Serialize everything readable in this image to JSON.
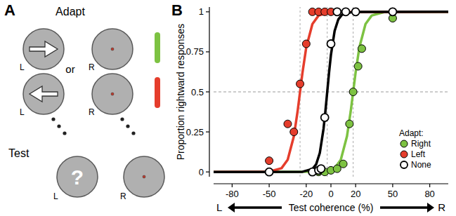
{
  "panel_labels": [
    "A",
    "B"
  ],
  "diagram": {
    "adapt_label": "Adapt",
    "or_label": "or",
    "test_label": "Test",
    "test_symbol": "?",
    "eye_labels": [
      "L",
      "R"
    ],
    "adapt_conditions": [
      {
        "direction": "right",
        "color": "#7dc242"
      },
      {
        "direction": "left",
        "color": "#e53d2c"
      }
    ]
  },
  "chart_data": {
    "type": "scatter",
    "xlabel": "Test coherence (%)",
    "x_end_labels": [
      "L",
      "R"
    ],
    "ylabel": "Proportion rightward responses",
    "xlim": [
      -95,
      95
    ],
    "ylim": [
      -0.03,
      1.03
    ],
    "xticks": [
      -80,
      -50,
      -20,
      0,
      20,
      50,
      80
    ],
    "yticks": [
      0,
      0.25,
      0.5,
      0.75,
      1
    ],
    "criterion": 0.5,
    "legend": "right",
    "legend_title": "Adapt:",
    "series": [
      {
        "name": "Right",
        "color": "#7dc242",
        "marker": "circle",
        "pse": 18,
        "x": [
          -50,
          -10,
          -5,
          0,
          5,
          10,
          15,
          18,
          22,
          25,
          50
        ],
        "values": [
          0,
          0,
          0,
          0.01,
          0.02,
          0.05,
          0.3,
          0.5,
          0.66,
          0.77,
          0.96
        ],
        "fit": {
          "x": [
            -95,
            -7,
            3,
            8,
            13,
            16,
            18,
            20,
            23,
            28,
            33,
            43,
            95
          ],
          "values": [
            0,
            0.002,
            0.023,
            0.076,
            0.223,
            0.378,
            0.5,
            0.622,
            0.777,
            0.924,
            0.977,
            0.998,
            1
          ]
        }
      },
      {
        "name": "Left",
        "color": "#e53d2c",
        "marker": "circle",
        "pse": -25,
        "x": [
          -50,
          -35,
          -30,
          -25,
          -20,
          -15,
          -10,
          -5,
          0,
          5,
          50
        ],
        "values": [
          0.07,
          0.3,
          0.25,
          0.55,
          0.8,
          1,
          1,
          1,
          1,
          1,
          1
        ],
        "fit": {
          "x": [
            -95,
            -50,
            -40,
            -35,
            -30,
            -27,
            -25,
            -23,
            -20,
            -15,
            -10,
            0,
            95
          ],
          "values": [
            0,
            0.002,
            0.023,
            0.076,
            0.223,
            0.378,
            0.5,
            0.622,
            0.777,
            0.924,
            0.977,
            0.998,
            1
          ]
        }
      },
      {
        "name": "None",
        "color": "#000000",
        "marker": "circle",
        "pse": -3,
        "x": [
          -50,
          -15,
          -10,
          -8,
          -5,
          0,
          5,
          12,
          20,
          50
        ],
        "values": [
          0,
          0,
          0.01,
          0.02,
          0.34,
          0.8,
          1,
          1,
          1,
          1
        ],
        "fit": {
          "x": [
            -95,
            -23,
            -15,
            -12,
            -9,
            -6,
            -4.5,
            -3,
            -1.5,
            0,
            3,
            6,
            9,
            17,
            95
          ],
          "values": [
            0,
            0.001,
            0.018,
            0.047,
            0.119,
            0.269,
            0.378,
            0.5,
            0.622,
            0.731,
            0.881,
            0.953,
            0.982,
            0.999,
            1
          ]
        }
      }
    ]
  }
}
